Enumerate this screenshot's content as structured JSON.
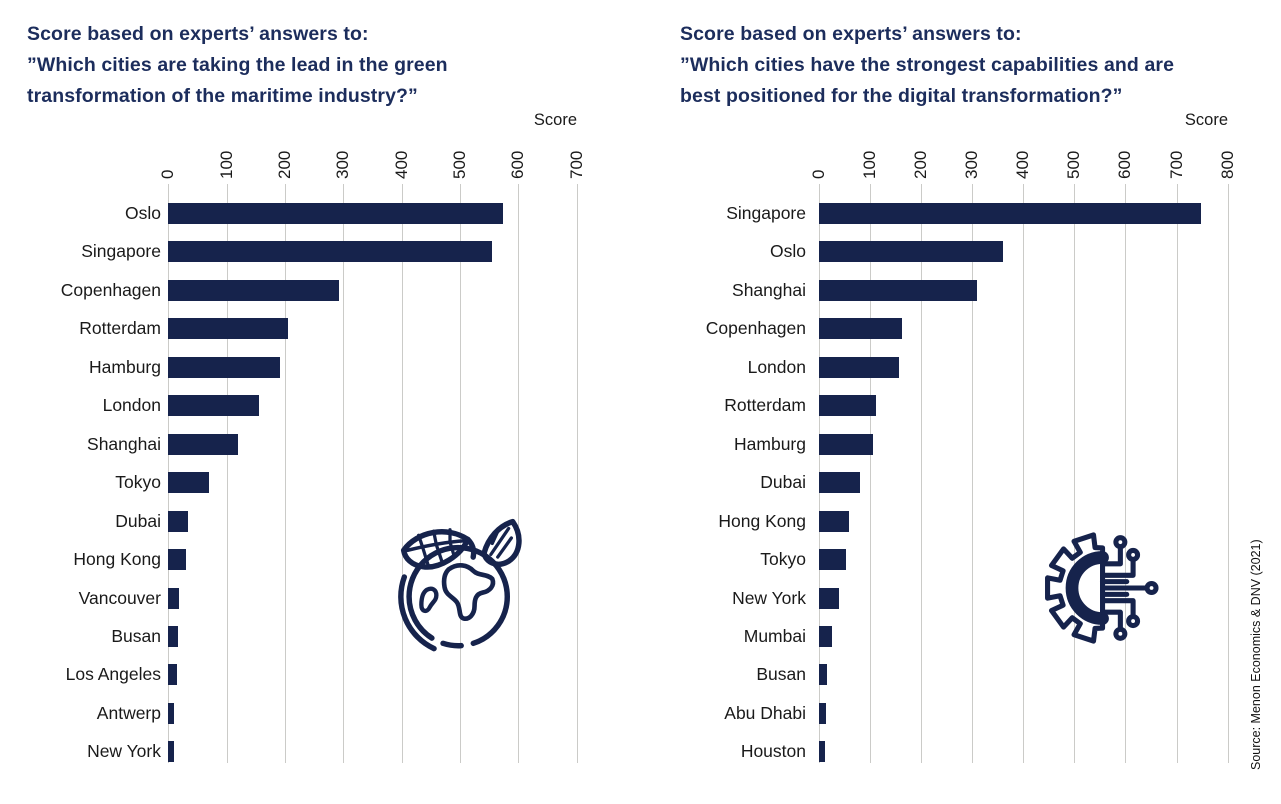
{
  "source_note": "Source: Menon Economics & DNV (2021)",
  "colors": {
    "bar": "#16234c",
    "title": "#1c2d5c",
    "gridline": "#cbcbc8",
    "text": "#1a1a1a"
  },
  "chart_data": [
    {
      "type": "bar",
      "orientation": "horizontal",
      "title_lines": [
        "Score based on experts’ answers to:",
        "”Which cities are taking the lead in the green",
        "transformation of the maritime industry?”"
      ],
      "value_axis_label": "Score",
      "xlim": [
        0,
        700
      ],
      "ticks": [
        0,
        100,
        200,
        300,
        400,
        500,
        600,
        700
      ],
      "grid": true,
      "legend": "none",
      "icon": "globe-with-leaves",
      "categories": [
        "Oslo",
        "Singapore",
        "Copenhagen",
        "Rotterdam",
        "Hamburg",
        "London",
        "Shanghai",
        "Tokyo",
        "Dubai",
        "Hong Kong",
        "Vancouver",
        "Busan",
        "Los Angeles",
        "Antwerp",
        "New York"
      ],
      "values": [
        574,
        554,
        293,
        206,
        192,
        155,
        120,
        69,
        34,
        30,
        18,
        16,
        15,
        10,
        9
      ]
    },
    {
      "type": "bar",
      "orientation": "horizontal",
      "title_lines": [
        "Score based on experts’ answers to:",
        "”Which cities have the strongest capabilities and are",
        "best positioned for the digital transformation?”"
      ],
      "value_axis_label": "Score",
      "xlim": [
        0,
        800
      ],
      "ticks": [
        0,
        100,
        200,
        300,
        400,
        500,
        600,
        700,
        800
      ],
      "grid": true,
      "legend": "none",
      "icon": "gear-circuit",
      "categories": [
        "Singapore",
        "Oslo",
        "Shanghai",
        "Copenhagen",
        "London",
        "Rotterdam",
        "Hamburg",
        "Dubai",
        "Hong Kong",
        "Tokyo",
        "New York",
        "Mumbai",
        "Busan",
        "Abu Dhabi",
        "Houston"
      ],
      "values": [
        748,
        361,
        310,
        162,
        157,
        112,
        107,
        81,
        59,
        54,
        40,
        26,
        17,
        14,
        13
      ]
    }
  ]
}
